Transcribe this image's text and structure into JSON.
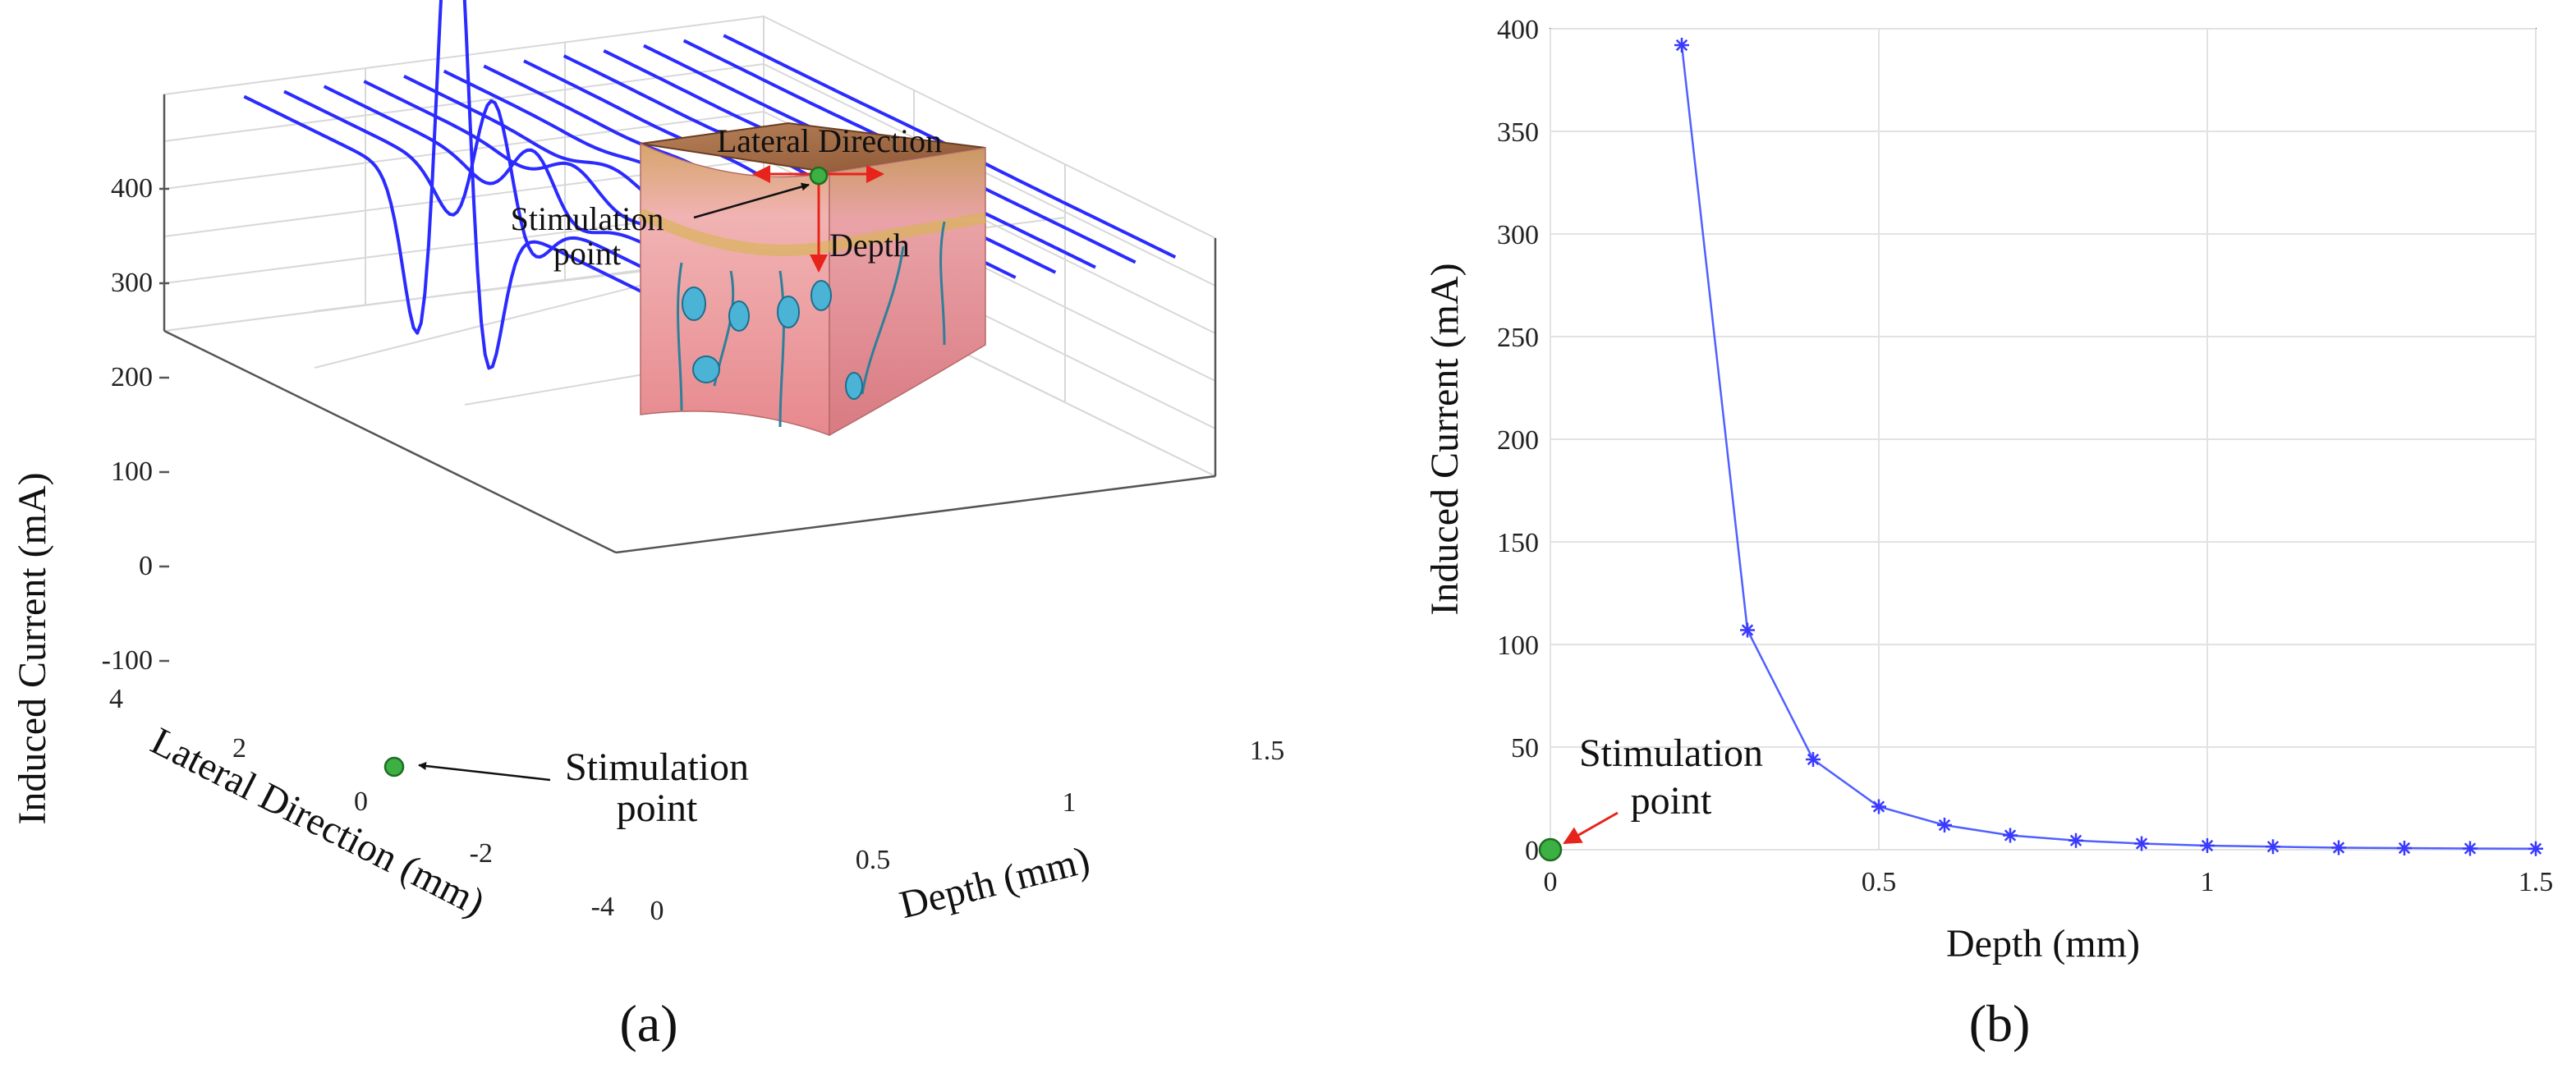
{
  "panel_a": {
    "label": "(a)",
    "zlabel": "Induced Current (mA)",
    "lateral_label": "Lateral Direction (mm)",
    "depth_label": "Depth (mm)",
    "annotation": "Stimulation\npoint",
    "inset": {
      "lateral_label": "Lateral Direction",
      "depth_label": "Depth",
      "stim_label": "Stimulation\npoint"
    }
  },
  "panel_b": {
    "label": "(b)",
    "annotation": "Stimulation\npoint"
  },
  "colors": {
    "series": "#2b2bff",
    "stim_point": "#3cb043",
    "arrow_red": "#e8231b"
  },
  "chart_data": [
    {
      "type": "line",
      "title": "",
      "view": "3d-waterfall",
      "xlabel": "Depth (mm)",
      "ylabel": "Lateral Direction (mm)",
      "zlabel": "Induced Current (mA)",
      "xlim": [
        0,
        1.5
      ],
      "ylim": [
        -4,
        4
      ],
      "zlim": [
        -100,
        400
      ],
      "x_ticks": [
        "0",
        "0.5",
        "1",
        "1.5"
      ],
      "y_ticks": [
        "4",
        "2",
        "0",
        "-2",
        "-4"
      ],
      "z_ticks": [
        "400",
        "300",
        "200",
        "100",
        "0",
        "-100"
      ],
      "series_depths": [
        0.2,
        0.3,
        0.4,
        0.5,
        0.6,
        0.7,
        0.8,
        0.9,
        1.0,
        1.1,
        1.2,
        1.3,
        1.4
      ],
      "series_peak_mA": [
        392,
        107,
        44,
        21,
        12,
        7,
        4.5,
        3,
        2,
        1.5,
        1,
        0.8,
        0.6
      ]
    },
    {
      "type": "line",
      "title": "",
      "xlabel": "Depth (mm)",
      "ylabel": "Induced Current (mA)",
      "xlim": [
        0,
        1.5
      ],
      "ylim": [
        0,
        400
      ],
      "x_ticks": [
        "0",
        "0.5",
        "1",
        "1.5"
      ],
      "y_ticks": [
        "0",
        "50",
        "100",
        "150",
        "200",
        "250",
        "300",
        "350",
        "400"
      ],
      "grid": true,
      "marker": "asterisk",
      "x": [
        0.2,
        0.3,
        0.4,
        0.5,
        0.6,
        0.7,
        0.8,
        0.9,
        1.0,
        1.1,
        1.2,
        1.3,
        1.4,
        1.5
      ],
      "y": [
        392,
        107,
        44,
        21,
        12,
        7,
        4.5,
        3,
        2,
        1.5,
        1,
        0.8,
        0.6,
        0.5
      ],
      "stimulation_point": [
        0,
        0
      ]
    }
  ]
}
